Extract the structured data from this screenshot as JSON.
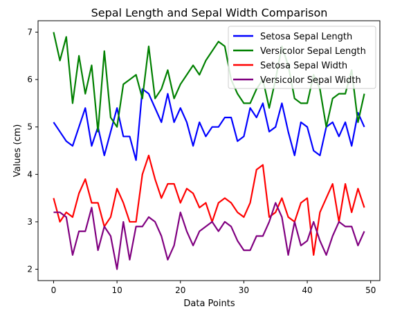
{
  "chart_data": {
    "type": "line",
    "title": "Sepal Length and Sepal Width Comparison",
    "xlabel": "Data Points",
    "ylabel": "Values (cm)",
    "xlim": [
      -2.45,
      51.45
    ],
    "ylim": [
      1.76,
      7.24
    ],
    "xticks": [
      0,
      10,
      20,
      30,
      40,
      50
    ],
    "yticks": [
      2,
      3,
      4,
      5,
      6,
      7
    ],
    "xtick_labels": [
      "0",
      "10",
      "20",
      "30",
      "40",
      "50"
    ],
    "ytick_labels": [
      "2",
      "3",
      "4",
      "5",
      "6",
      "7"
    ],
    "grid": false,
    "legend_location": "top-right",
    "x": [
      0,
      1,
      2,
      3,
      4,
      5,
      6,
      7,
      8,
      9,
      10,
      11,
      12,
      13,
      14,
      15,
      16,
      17,
      18,
      19,
      20,
      21,
      22,
      23,
      24,
      25,
      26,
      27,
      28,
      29,
      30,
      31,
      32,
      33,
      34,
      35,
      36,
      37,
      38,
      39,
      40,
      41,
      42,
      43,
      44,
      45,
      46,
      47,
      48,
      49
    ],
    "series": [
      {
        "name": "Setosa Sepal Length",
        "color": "#0000ff",
        "values": [
          5.1,
          4.9,
          4.7,
          4.6,
          5.0,
          5.4,
          4.6,
          5.0,
          4.4,
          4.9,
          5.4,
          4.8,
          4.8,
          4.3,
          5.8,
          5.7,
          5.4,
          5.1,
          5.7,
          5.1,
          5.4,
          5.1,
          4.6,
          5.1,
          4.8,
          5.0,
          5.0,
          5.2,
          5.2,
          4.7,
          4.8,
          5.4,
          5.2,
          5.5,
          4.9,
          5.0,
          5.5,
          4.9,
          4.4,
          5.1,
          5.0,
          4.5,
          4.4,
          5.0,
          5.1,
          4.8,
          5.1,
          4.6,
          5.3,
          5.0
        ]
      },
      {
        "name": "Versicolor Sepal Length",
        "color": "#008000",
        "values": [
          7.0,
          6.4,
          6.9,
          5.5,
          6.5,
          5.7,
          6.3,
          4.9,
          6.6,
          5.2,
          5.0,
          5.9,
          6.0,
          6.1,
          5.6,
          6.7,
          5.6,
          5.8,
          6.2,
          5.6,
          5.9,
          6.1,
          6.3,
          6.1,
          6.4,
          6.6,
          6.8,
          6.7,
          6.0,
          5.7,
          5.5,
          5.5,
          5.8,
          6.0,
          5.4,
          6.0,
          6.7,
          6.3,
          5.6,
          5.5,
          5.5,
          6.1,
          5.8,
          5.0,
          5.6,
          5.7,
          5.7,
          6.2,
          5.1,
          5.7
        ]
      },
      {
        "name": "Setosa Sepal Width",
        "color": "#ff0000",
        "values": [
          3.5,
          3.0,
          3.2,
          3.1,
          3.6,
          3.9,
          3.4,
          3.4,
          2.9,
          3.1,
          3.7,
          3.4,
          3.0,
          3.0,
          4.0,
          4.4,
          3.9,
          3.5,
          3.8,
          3.8,
          3.4,
          3.7,
          3.6,
          3.3,
          3.4,
          3.0,
          3.4,
          3.5,
          3.4,
          3.2,
          3.1,
          3.4,
          4.1,
          4.2,
          3.1,
          3.2,
          3.5,
          3.1,
          3.0,
          3.4,
          3.5,
          2.3,
          3.2,
          3.5,
          3.8,
          3.0,
          3.8,
          3.2,
          3.7,
          3.3
        ]
      },
      {
        "name": "Versicolor Sepal Width",
        "color": "#800080",
        "values": [
          3.2,
          3.2,
          3.1,
          2.3,
          2.8,
          2.8,
          3.3,
          2.4,
          2.9,
          2.7,
          2.0,
          3.0,
          2.2,
          2.9,
          2.9,
          3.1,
          3.0,
          2.7,
          2.2,
          2.5,
          3.2,
          2.8,
          2.5,
          2.8,
          2.9,
          3.0,
          2.8,
          3.0,
          2.9,
          2.6,
          2.4,
          2.4,
          2.7,
          2.7,
          3.0,
          3.4,
          3.1,
          2.3,
          3.0,
          2.5,
          2.6,
          3.0,
          2.6,
          2.3,
          2.7,
          3.0,
          2.9,
          2.9,
          2.5,
          2.8
        ]
      }
    ]
  }
}
